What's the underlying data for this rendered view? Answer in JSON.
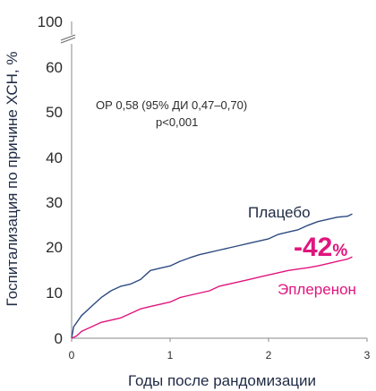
{
  "chart_data": {
    "type": "line",
    "xlabel": "Годы после рандомизации",
    "ylabel": "Госпитализация по причине ХСН, %",
    "x_ticks": [
      "0",
      "1",
      "2",
      "3"
    ],
    "y_ticks": [
      "0",
      "10",
      "20",
      "30",
      "40",
      "50",
      "60",
      "100"
    ],
    "y_axis_break": "между 60 и 100",
    "xlim": [
      0,
      3
    ],
    "ylim": [
      0,
      100
    ],
    "annotations": {
      "hr": "ОР 0,58 (95% ДИ 0,47–0,70)",
      "p": "p<0,001",
      "reduction_value": "-42",
      "reduction_unit": "%"
    },
    "series": [
      {
        "name": "Плацебо",
        "color": "#2d4a80",
        "points": [
          [
            0,
            0
          ],
          [
            0.02,
            2.5
          ],
          [
            0.1,
            5
          ],
          [
            0.2,
            7
          ],
          [
            0.3,
            9
          ],
          [
            0.4,
            10.5
          ],
          [
            0.5,
            11.5
          ],
          [
            0.6,
            12
          ],
          [
            0.7,
            13
          ],
          [
            0.8,
            15
          ],
          [
            0.9,
            15.5
          ],
          [
            1.0,
            16
          ],
          [
            1.1,
            17
          ],
          [
            1.2,
            17.8
          ],
          [
            1.3,
            18.5
          ],
          [
            1.4,
            19
          ],
          [
            1.5,
            19.5
          ],
          [
            1.6,
            20
          ],
          [
            1.7,
            20.5
          ],
          [
            1.8,
            21
          ],
          [
            1.9,
            21.5
          ],
          [
            2.0,
            22
          ],
          [
            2.1,
            23
          ],
          [
            2.2,
            23.5
          ],
          [
            2.3,
            24
          ],
          [
            2.4,
            25
          ],
          [
            2.5,
            25.8
          ],
          [
            2.6,
            26.3
          ],
          [
            2.7,
            26.8
          ],
          [
            2.8,
            27
          ],
          [
            2.85,
            27.5
          ]
        ]
      },
      {
        "name": "Эплеренон",
        "color": "#e0157e",
        "points": [
          [
            0,
            0
          ],
          [
            0.05,
            0.5
          ],
          [
            0.1,
            1.5
          ],
          [
            0.2,
            2.5
          ],
          [
            0.3,
            3.5
          ],
          [
            0.4,
            4
          ],
          [
            0.5,
            4.5
          ],
          [
            0.6,
            5.5
          ],
          [
            0.7,
            6.5
          ],
          [
            0.8,
            7
          ],
          [
            0.9,
            7.5
          ],
          [
            1.0,
            8
          ],
          [
            1.1,
            9
          ],
          [
            1.2,
            9.5
          ],
          [
            1.3,
            10
          ],
          [
            1.4,
            10.5
          ],
          [
            1.5,
            11.5
          ],
          [
            1.6,
            12
          ],
          [
            1.7,
            12.5
          ],
          [
            1.8,
            13
          ],
          [
            1.9,
            13.5
          ],
          [
            2.0,
            14
          ],
          [
            2.1,
            14.5
          ],
          [
            2.2,
            15
          ],
          [
            2.3,
            15.3
          ],
          [
            2.4,
            15.6
          ],
          [
            2.5,
            16
          ],
          [
            2.6,
            16.5
          ],
          [
            2.7,
            17
          ],
          [
            2.8,
            17.5
          ],
          [
            2.85,
            18
          ]
        ]
      }
    ]
  }
}
